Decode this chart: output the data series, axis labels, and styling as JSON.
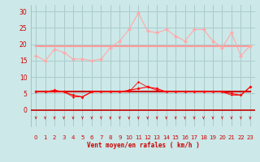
{
  "x": [
    0,
    1,
    2,
    3,
    4,
    5,
    6,
    7,
    8,
    9,
    10,
    11,
    12,
    13,
    14,
    15,
    16,
    17,
    18,
    19,
    20,
    21,
    22,
    23
  ],
  "rafales": [
    16.5,
    15.0,
    18.5,
    17.5,
    15.5,
    15.5,
    15.0,
    15.5,
    19.0,
    21.0,
    24.5,
    29.5,
    24.0,
    23.5,
    24.5,
    22.5,
    21.0,
    24.5,
    24.5,
    21.0,
    19.0,
    23.5,
    16.5,
    19.5
  ],
  "moyenne_high": [
    19.5,
    19.5,
    19.5,
    19.5,
    19.5,
    19.5,
    19.5,
    19.5,
    19.5,
    19.5,
    19.5,
    19.5,
    19.5,
    19.5,
    19.5,
    19.5,
    19.5,
    19.5,
    19.5,
    19.5,
    19.5,
    19.5,
    19.5,
    19.5
  ],
  "vent_moyen": [
    5.5,
    5.5,
    6.0,
    5.5,
    4.5,
    4.0,
    5.5,
    5.5,
    5.5,
    5.5,
    6.0,
    6.5,
    7.0,
    6.5,
    5.5,
    5.5,
    5.5,
    5.5,
    5.5,
    5.5,
    5.5,
    5.0,
    4.5,
    7.0
  ],
  "vent_line1": [
    5.5,
    5.5,
    5.5,
    5.5,
    5.5,
    5.5,
    5.5,
    5.5,
    5.5,
    5.5,
    5.5,
    5.5,
    5.5,
    5.5,
    5.5,
    5.5,
    5.5,
    5.5,
    5.5,
    5.5,
    5.5,
    5.5,
    5.5,
    5.5
  ],
  "vent_min": [
    5.5,
    5.5,
    5.5,
    5.5,
    4.0,
    4.0,
    5.5,
    5.5,
    5.5,
    5.5,
    5.5,
    8.5,
    7.0,
    6.0,
    5.5,
    5.5,
    5.5,
    5.5,
    5.5,
    5.5,
    5.5,
    4.5,
    4.5,
    7.0
  ],
  "wind_arrow_angles": [
    180,
    195,
    205,
    210,
    215,
    225,
    195,
    185,
    225,
    235,
    245,
    255,
    245,
    240,
    235,
    200,
    215,
    220,
    210,
    205,
    200,
    195,
    185,
    270
  ],
  "bg_color": "#cce8e8",
  "grid_color": "#aacccc",
  "line_color_rafales": "#ffaaaa",
  "line_color_moyenne": "#ff9999",
  "line_color_vent": "#ff0000",
  "line_color_flat": "#cc0000",
  "arrow_color": "#cc2222",
  "xlabel": "Vent moyen/en rafales ( km/h )",
  "ylim": [
    -5,
    32
  ],
  "ylim_real": [
    0,
    30
  ],
  "xlim": [
    -0.5,
    23.5
  ],
  "yticks": [
    0,
    5,
    10,
    15,
    20,
    25,
    30
  ],
  "xticks": [
    0,
    1,
    2,
    3,
    4,
    5,
    6,
    7,
    8,
    9,
    10,
    11,
    12,
    13,
    14,
    15,
    16,
    17,
    18,
    19,
    20,
    21,
    22,
    23
  ]
}
